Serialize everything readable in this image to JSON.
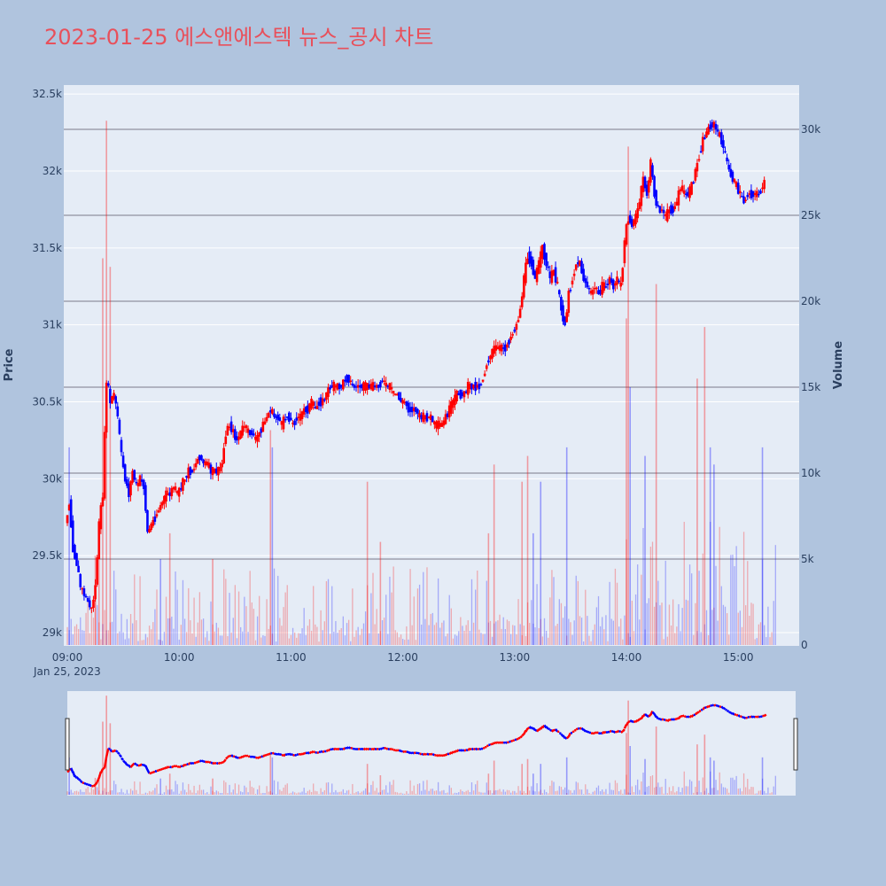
{
  "title": "2023-01-25 에스앤에스텍 뉴스_공시 차트",
  "colors": {
    "background": "#b0c4de",
    "plot_bg": "#e5ecf6",
    "up": "#ff0000",
    "down": "#0000ff",
    "title": "#e8505b"
  },
  "chart_data": {
    "type": "candlestick",
    "date_label": "Jan 25, 2023",
    "x_ticks": [
      "09:00",
      "10:00",
      "11:00",
      "12:00",
      "13:00",
      "14:00",
      "15:00"
    ],
    "x_range_minutes": [
      540,
      935
    ],
    "price_axis": {
      "label": "Price",
      "range": [
        28950,
        32550
      ],
      "ticks": [
        29000,
        29500,
        30000,
        30500,
        31000,
        31500,
        32000,
        32500
      ],
      "tick_labels": [
        "29k",
        "29.5k",
        "30k",
        "30.5k",
        "31k",
        "31.5k",
        "32k",
        "32.5k"
      ]
    },
    "volume_axis": {
      "label": "Volume",
      "range": [
        0,
        32000
      ],
      "ticks": [
        0,
        5000,
        10000,
        15000,
        20000,
        25000,
        30000
      ],
      "tick_labels": [
        "0",
        "5k",
        "10k",
        "15k",
        "20k",
        "25k",
        "30k"
      ]
    },
    "price_path": [
      [
        540,
        29700
      ],
      [
        542,
        29850
      ],
      [
        544,
        29550
      ],
      [
        546,
        29450
      ],
      [
        548,
        29300
      ],
      [
        550,
        29250
      ],
      [
        552,
        29200
      ],
      [
        554,
        29150
      ],
      [
        556,
        29300
      ],
      [
        558,
        29700
      ],
      [
        560,
        29900
      ],
      [
        562,
        30650
      ],
      [
        564,
        30500
      ],
      [
        566,
        30550
      ],
      [
        568,
        30400
      ],
      [
        570,
        30150
      ],
      [
        572,
        30000
      ],
      [
        574,
        29900
      ],
      [
        576,
        30050
      ],
      [
        578,
        29950
      ],
      [
        580,
        30000
      ],
      [
        582,
        29950
      ],
      [
        584,
        29650
      ],
      [
        586,
        29700
      ],
      [
        588,
        29750
      ],
      [
        590,
        29800
      ],
      [
        592,
        29850
      ],
      [
        594,
        29900
      ],
      [
        596,
        29900
      ],
      [
        598,
        29950
      ],
      [
        600,
        29900
      ],
      [
        602,
        29950
      ],
      [
        604,
        30000
      ],
      [
        606,
        30050
      ],
      [
        608,
        30050
      ],
      [
        610,
        30100
      ],
      [
        612,
        30150
      ],
      [
        614,
        30100
      ],
      [
        616,
        30100
      ],
      [
        618,
        30050
      ],
      [
        620,
        30050
      ],
      [
        622,
        30050
      ],
      [
        624,
        30100
      ],
      [
        626,
        30300
      ],
      [
        628,
        30350
      ],
      [
        630,
        30300
      ],
      [
        632,
        30250
      ],
      [
        634,
        30300
      ],
      [
        636,
        30350
      ],
      [
        638,
        30300
      ],
      [
        640,
        30300
      ],
      [
        642,
        30250
      ],
      [
        644,
        30300
      ],
      [
        646,
        30350
      ],
      [
        648,
        30400
      ],
      [
        650,
        30450
      ],
      [
        652,
        30400
      ],
      [
        654,
        30400
      ],
      [
        656,
        30350
      ],
      [
        658,
        30400
      ],
      [
        660,
        30400
      ],
      [
        662,
        30350
      ],
      [
        664,
        30400
      ],
      [
        666,
        30400
      ],
      [
        668,
        30450
      ],
      [
        670,
        30450
      ],
      [
        672,
        30500
      ],
      [
        674,
        30450
      ],
      [
        676,
        30500
      ],
      [
        678,
        30500
      ],
      [
        680,
        30550
      ],
      [
        682,
        30600
      ],
      [
        684,
        30600
      ],
      [
        686,
        30600
      ],
      [
        688,
        30600
      ],
      [
        690,
        30650
      ],
      [
        692,
        30650
      ],
      [
        694,
        30600
      ],
      [
        696,
        30600
      ],
      [
        698,
        30600
      ],
      [
        700,
        30600
      ],
      [
        702,
        30600
      ],
      [
        704,
        30600
      ],
      [
        706,
        30600
      ],
      [
        708,
        30600
      ],
      [
        710,
        30650
      ],
      [
        712,
        30600
      ],
      [
        714,
        30600
      ],
      [
        716,
        30550
      ],
      [
        718,
        30550
      ],
      [
        720,
        30500
      ],
      [
        722,
        30500
      ],
      [
        724,
        30450
      ],
      [
        726,
        30450
      ],
      [
        728,
        30450
      ],
      [
        730,
        30400
      ],
      [
        732,
        30400
      ],
      [
        734,
        30400
      ],
      [
        736,
        30400
      ],
      [
        738,
        30350
      ],
      [
        740,
        30350
      ],
      [
        742,
        30350
      ],
      [
        744,
        30400
      ],
      [
        746,
        30450
      ],
      [
        748,
        30500
      ],
      [
        750,
        30550
      ],
      [
        752,
        30550
      ],
      [
        754,
        30550
      ],
      [
        756,
        30600
      ],
      [
        758,
        30600
      ],
      [
        760,
        30600
      ],
      [
        762,
        30600
      ],
      [
        764,
        30650
      ],
      [
        766,
        30750
      ],
      [
        768,
        30800
      ],
      [
        770,
        30850
      ],
      [
        772,
        30850
      ],
      [
        774,
        30850
      ],
      [
        776,
        30850
      ],
      [
        778,
        30900
      ],
      [
        780,
        30950
      ],
      [
        782,
        31000
      ],
      [
        784,
        31100
      ],
      [
        786,
        31300
      ],
      [
        788,
        31450
      ],
      [
        790,
        31400
      ],
      [
        792,
        31300
      ],
      [
        794,
        31400
      ],
      [
        796,
        31500
      ],
      [
        798,
        31400
      ],
      [
        800,
        31300
      ],
      [
        802,
        31350
      ],
      [
        804,
        31250
      ],
      [
        806,
        31100
      ],
      [
        808,
        31000
      ],
      [
        810,
        31200
      ],
      [
        812,
        31300
      ],
      [
        814,
        31400
      ],
      [
        816,
        31400
      ],
      [
        818,
        31300
      ],
      [
        820,
        31250
      ],
      [
        822,
        31200
      ],
      [
        824,
        31250
      ],
      [
        826,
        31200
      ],
      [
        828,
        31250
      ],
      [
        830,
        31250
      ],
      [
        832,
        31300
      ],
      [
        834,
        31250
      ],
      [
        836,
        31300
      ],
      [
        838,
        31250
      ],
      [
        840,
        31550
      ],
      [
        842,
        31700
      ],
      [
        844,
        31650
      ],
      [
        846,
        31700
      ],
      [
        848,
        31800
      ],
      [
        850,
        31950
      ],
      [
        852,
        31850
      ],
      [
        854,
        32050
      ],
      [
        856,
        31850
      ],
      [
        858,
        31750
      ],
      [
        860,
        31750
      ],
      [
        862,
        31700
      ],
      [
        864,
        31750
      ],
      [
        866,
        31750
      ],
      [
        868,
        31800
      ],
      [
        870,
        31900
      ],
      [
        872,
        31850
      ],
      [
        874,
        31850
      ],
      [
        876,
        31900
      ],
      [
        878,
        32000
      ],
      [
        880,
        32100
      ],
      [
        882,
        32200
      ],
      [
        884,
        32250
      ],
      [
        886,
        32300
      ],
      [
        888,
        32300
      ],
      [
        890,
        32250
      ],
      [
        892,
        32200
      ],
      [
        894,
        32100
      ],
      [
        896,
        32000
      ],
      [
        898,
        31950
      ],
      [
        900,
        31900
      ],
      [
        902,
        31850
      ],
      [
        904,
        31800
      ],
      [
        906,
        31850
      ],
      [
        908,
        31850
      ],
      [
        910,
        31850
      ],
      [
        912,
        31850
      ],
      [
        914,
        31900
      ],
      [
        916,
        31950
      ]
    ],
    "volume_notable": [
      [
        541,
        11500,
        "down"
      ],
      [
        555,
        5200,
        "up"
      ],
      [
        557,
        6000,
        "up"
      ],
      [
        559,
        22500,
        "up"
      ],
      [
        561,
        30500,
        "up"
      ],
      [
        563,
        22000,
        "up"
      ],
      [
        590,
        5000,
        "down"
      ],
      [
        595,
        6500,
        "up"
      ],
      [
        618,
        5000,
        "up"
      ],
      [
        649,
        12500,
        "up"
      ],
      [
        650,
        11500,
        "down"
      ],
      [
        701,
        9500,
        "up"
      ],
      [
        708,
        6000,
        "up"
      ],
      [
        766,
        6500,
        "up"
      ],
      [
        769,
        10500,
        "up"
      ],
      [
        784,
        9500,
        "up"
      ],
      [
        787,
        11000,
        "up"
      ],
      [
        790,
        6500,
        "down"
      ],
      [
        794,
        9500,
        "down"
      ],
      [
        808,
        11500,
        "down"
      ],
      [
        840,
        19000,
        "up"
      ],
      [
        841,
        29000,
        "up"
      ],
      [
        842,
        15000,
        "down"
      ],
      [
        850,
        11000,
        "down"
      ],
      [
        856,
        21000,
        "up"
      ],
      [
        878,
        15500,
        "up"
      ],
      [
        882,
        18500,
        "up"
      ],
      [
        885,
        11500,
        "down"
      ],
      [
        887,
        10500,
        "down"
      ],
      [
        913,
        11500,
        "down"
      ]
    ]
  }
}
